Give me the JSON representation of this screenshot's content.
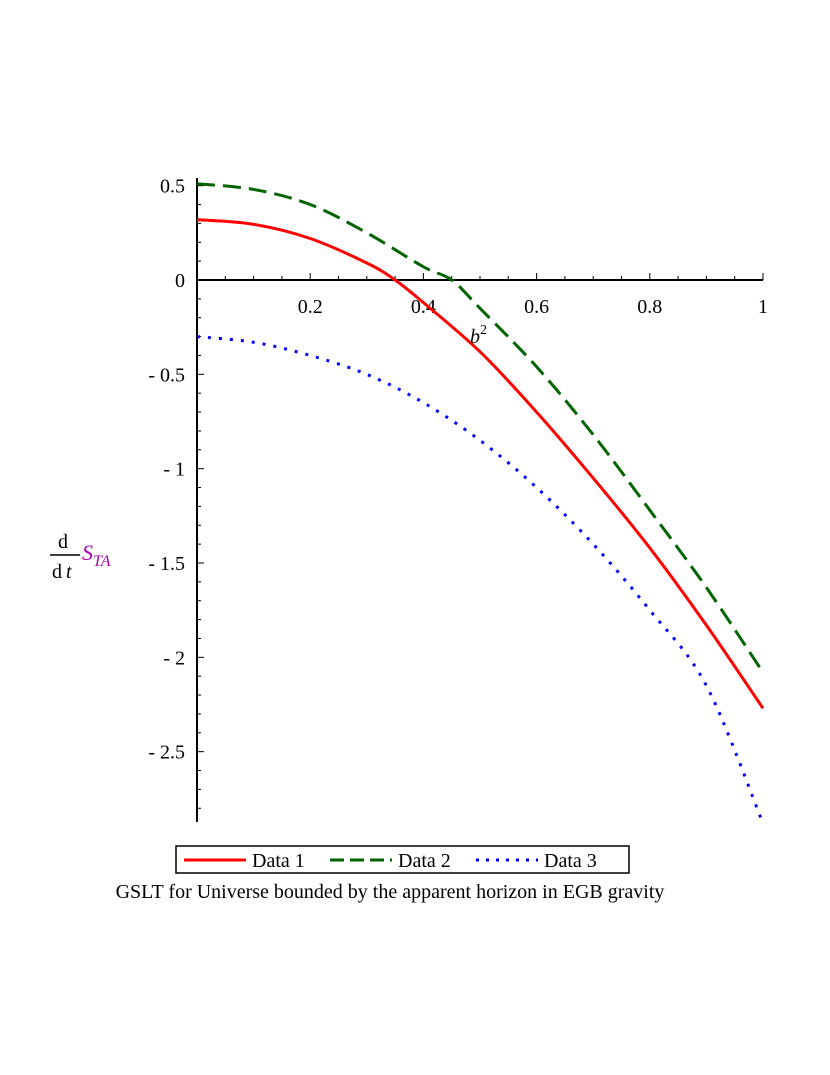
{
  "chart_data": {
    "type": "line",
    "title": "GSLT for Universe bounded by the apparent horizon in EGB gravity",
    "xlabel": "b",
    "xlabel_superscript": "2",
    "ylabel": {
      "d_top": "d",
      "d_bottom": "d",
      "t": "t",
      "S": "S",
      "sub": "TA"
    },
    "xlim": [
      0,
      1
    ],
    "ylim": [
      -2.9,
      0.55
    ],
    "x_ticks": [
      0.2,
      0.4,
      0.6,
      0.8,
      1
    ],
    "x_tick_labels": [
      "0.2",
      "0.4",
      "0.6",
      "0.8",
      "1"
    ],
    "y_ticks": [
      0.5,
      0,
      -0.5,
      -1,
      -1.5,
      -2,
      -2.5
    ],
    "y_tick_labels": [
      "0.5",
      "0",
      "- 0.5",
      "- 1",
      "- 1.5",
      "- 2",
      "- 2.5"
    ],
    "series": [
      {
        "name": "Data 1",
        "color": "#ff0000",
        "style": "solid",
        "x": [
          0,
          0.1,
          0.2,
          0.3,
          0.35,
          0.4,
          0.5,
          0.6,
          0.7,
          0.8,
          0.9,
          1.0
        ],
        "y": [
          0.32,
          0.295,
          0.22,
          0.09,
          0.0,
          -0.12,
          -0.38,
          -0.7,
          -1.05,
          -1.42,
          -1.83,
          -2.27
        ]
      },
      {
        "name": "Data 2",
        "color": "#006400",
        "style": "dashed",
        "x": [
          0,
          0.1,
          0.2,
          0.3,
          0.4,
          0.45,
          0.5,
          0.6,
          0.7,
          0.8,
          0.9,
          1.0
        ],
        "y": [
          0.51,
          0.48,
          0.4,
          0.25,
          0.07,
          0.0,
          -0.15,
          -0.46,
          -0.82,
          -1.22,
          -1.63,
          -2.08
        ]
      },
      {
        "name": "Data 3",
        "color": "#0000ff",
        "style": "dotted",
        "x": [
          0,
          0.1,
          0.2,
          0.3,
          0.4,
          0.5,
          0.6,
          0.7,
          0.8,
          0.9,
          1.0
        ],
        "y": [
          -0.3,
          -0.33,
          -0.4,
          -0.5,
          -0.65,
          -0.85,
          -1.1,
          -1.4,
          -1.75,
          -2.15,
          -2.88
        ]
      }
    ],
    "legend": {
      "position": "bottom",
      "entries": [
        "Data 1",
        "Data 2",
        "Data 3"
      ]
    },
    "grid": false
  }
}
